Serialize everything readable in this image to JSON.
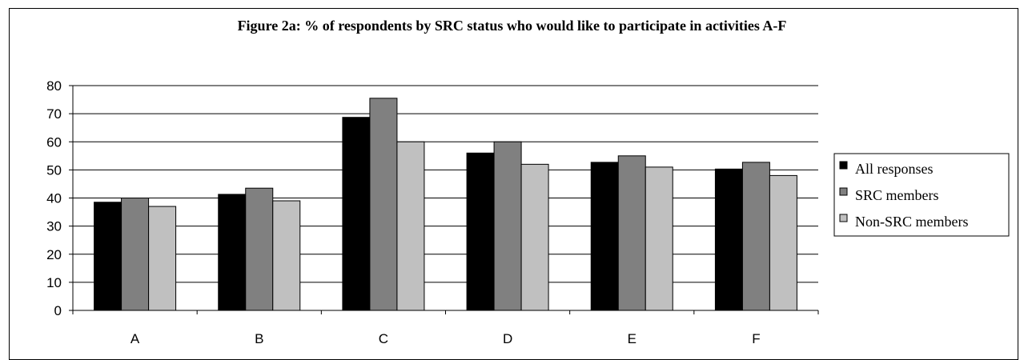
{
  "chart_data": {
    "type": "bar",
    "title": "Figure 2a: % of respondents by SRC status who would like to participate in activities A-F",
    "xlabel": "",
    "ylabel": "",
    "ylim": [
      0,
      80
    ],
    "yticks": [
      0,
      10,
      20,
      30,
      40,
      50,
      60,
      70,
      80
    ],
    "categories": [
      "A",
      "B",
      "C",
      "D",
      "E",
      "F"
    ],
    "grid": true,
    "legend_position": "right",
    "series": [
      {
        "name": "All responses",
        "color": "#000000",
        "values": [
          38.5,
          41.3,
          68.7,
          56.0,
          52.7,
          50.3
        ]
      },
      {
        "name": "SRC members",
        "color": "#808080",
        "values": [
          40.0,
          43.5,
          75.5,
          60.0,
          55.0,
          52.7
        ]
      },
      {
        "name": "Non-SRC members",
        "color": "#c0c0c0",
        "values": [
          37.0,
          39.0,
          60.0,
          52.0,
          51.0,
          48.0
        ]
      }
    ]
  }
}
